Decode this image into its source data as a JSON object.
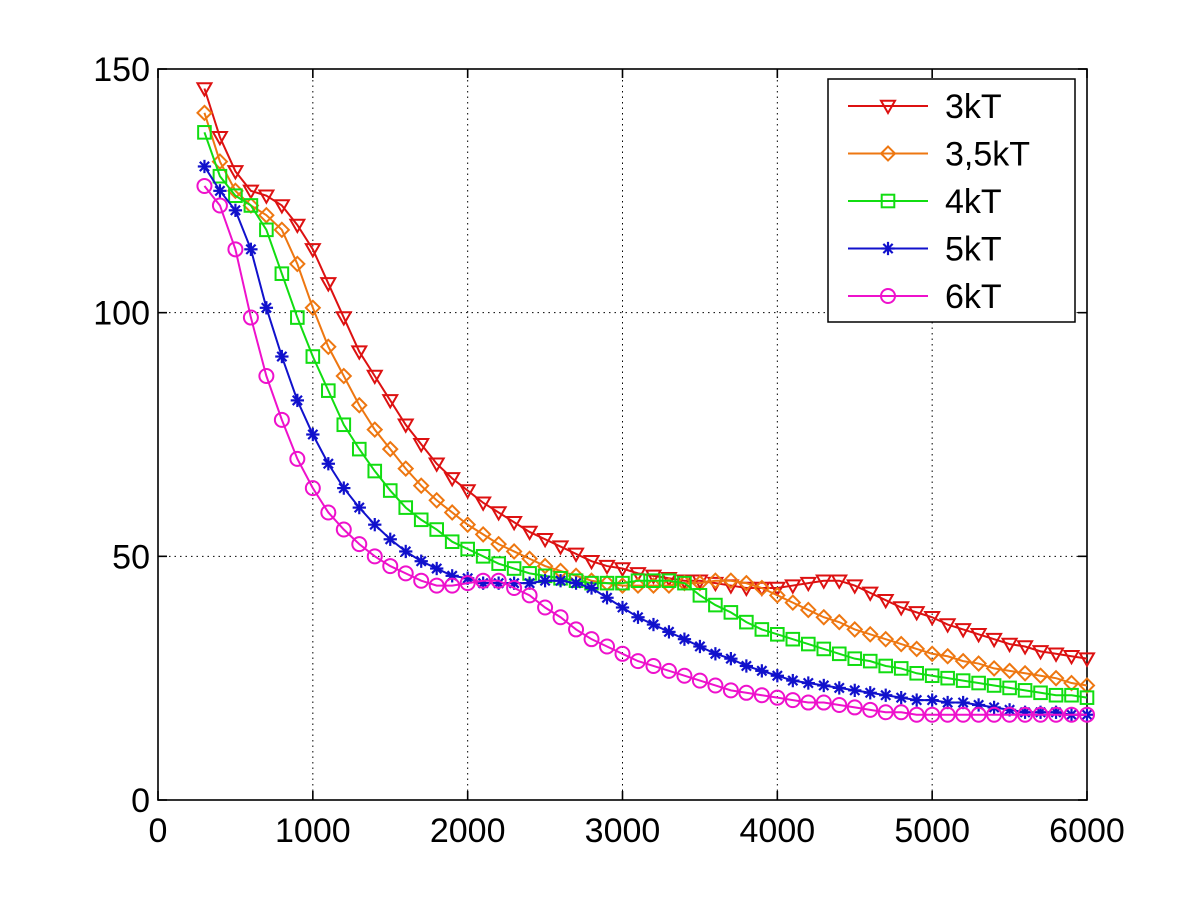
{
  "chart_data": {
    "type": "line",
    "title": "",
    "xlabel": "",
    "ylabel": "",
    "xlim": [
      0,
      6000
    ],
    "ylim": [
      0,
      150
    ],
    "x_ticks": [
      0,
      1000,
      2000,
      3000,
      4000,
      5000,
      6000
    ],
    "y_ticks": [
      0,
      50,
      100,
      150
    ],
    "x_tick_labels": [
      "0",
      "1000",
      "2000",
      "3000",
      "4000",
      "5000",
      "6000"
    ],
    "y_tick_labels": [
      "0",
      "50",
      "100",
      "150"
    ],
    "grid": true,
    "legend_position": "top-right",
    "x": [
      300,
      400,
      500,
      600,
      700,
      800,
      900,
      1000,
      1100,
      1200,
      1300,
      1400,
      1500,
      1600,
      1700,
      1800,
      1900,
      2000,
      2100,
      2200,
      2300,
      2400,
      2500,
      2600,
      2700,
      2800,
      2900,
      3000,
      3100,
      3200,
      3300,
      3400,
      3500,
      3600,
      3700,
      3800,
      3900,
      4000,
      4100,
      4200,
      4300,
      4400,
      4500,
      4600,
      4700,
      4800,
      4900,
      5000,
      5100,
      5200,
      5300,
      5400,
      5500,
      5600,
      5700,
      5800,
      5900,
      6000
    ],
    "series": [
      {
        "name": "3kT",
        "color": "#dd1111",
        "marker": "triangle-down",
        "values": [
          146,
          136,
          129,
          125,
          124,
          122,
          118,
          113,
          106,
          99,
          92,
          87,
          82,
          77,
          73,
          69,
          66,
          63.5,
          61,
          59,
          57,
          55,
          53.5,
          52,
          50.5,
          49,
          48,
          47.5,
          46.5,
          46,
          45.5,
          45,
          45,
          44.5,
          44,
          43.5,
          43.5,
          43.5,
          44,
          44.5,
          45,
          45,
          44,
          42.5,
          41,
          39.5,
          38.5,
          37.5,
          36,
          35,
          34,
          33,
          32,
          31.5,
          30.5,
          30,
          29.5,
          29
        ]
      },
      {
        "name": "3,5kT",
        "color": "#ee7711",
        "marker": "diamond",
        "values": [
          141,
          131,
          125,
          122,
          120,
          117,
          110,
          101,
          93,
          87,
          81,
          76,
          72,
          68,
          64.5,
          61.5,
          59,
          56.5,
          54.5,
          52.5,
          51,
          49.5,
          48,
          47,
          46,
          45,
          44.5,
          44,
          44,
          44,
          44,
          44.5,
          44.5,
          45,
          45,
          44.5,
          43.5,
          42,
          40.5,
          39,
          37.5,
          36.5,
          35,
          34,
          33,
          32,
          31,
          30,
          29.5,
          28.5,
          28,
          27,
          26.5,
          26,
          25.5,
          25,
          24,
          23.5
        ]
      },
      {
        "name": "4kT",
        "color": "#11dd11",
        "marker": "square",
        "values": [
          137,
          128,
          124,
          122,
          117,
          108,
          99,
          91,
          84,
          77,
          72,
          67.5,
          63.5,
          60,
          57.5,
          55.5,
          53,
          51.5,
          50,
          48.5,
          47.5,
          46.5,
          46,
          45.5,
          45,
          44.5,
          44.5,
          44.5,
          45,
          45,
          45,
          44.5,
          42,
          40,
          38.5,
          36.5,
          35,
          34,
          33,
          32,
          31,
          30,
          29,
          28.5,
          27.5,
          27,
          26,
          25.5,
          25,
          24.5,
          24,
          23.5,
          23,
          22.5,
          22,
          21.5,
          21.5,
          21
        ]
      },
      {
        "name": "5kT",
        "color": "#1111cc",
        "marker": "asterisk",
        "values": [
          130,
          125,
          121,
          113,
          101,
          91,
          82,
          75,
          69,
          64,
          60,
          56.5,
          53.5,
          51,
          49,
          47.5,
          46,
          45.5,
          44.5,
          44.5,
          44.5,
          44.5,
          45,
          45,
          44.5,
          43.5,
          41.5,
          39.5,
          37.5,
          36,
          34.5,
          33,
          31.5,
          30,
          29,
          27.5,
          26.5,
          25.5,
          24.5,
          24,
          23.5,
          23,
          22.5,
          22,
          21.5,
          21,
          20.5,
          20.5,
          20,
          20,
          19.5,
          19,
          18.5,
          18,
          18,
          18,
          17.5,
          17.5
        ]
      },
      {
        "name": "6kT",
        "color": "#ee11cc",
        "marker": "circle",
        "values": [
          126,
          122,
          113,
          99,
          87,
          78,
          70,
          64,
          59,
          55.5,
          52.5,
          50,
          48,
          46.5,
          45,
          44,
          44,
          44.5,
          45,
          45,
          43.5,
          42,
          39.5,
          37.5,
          35,
          33,
          31.5,
          30,
          28.5,
          27.5,
          26.5,
          25.5,
          24.5,
          23.5,
          22.5,
          22,
          21.5,
          21,
          20.5,
          20,
          20,
          19.5,
          19,
          18.5,
          18,
          18,
          17.5,
          17.5,
          17.5,
          17.5,
          17.5,
          17.5,
          17.5,
          17.5,
          17.5,
          17.5,
          17.5,
          17.5
        ]
      }
    ]
  }
}
